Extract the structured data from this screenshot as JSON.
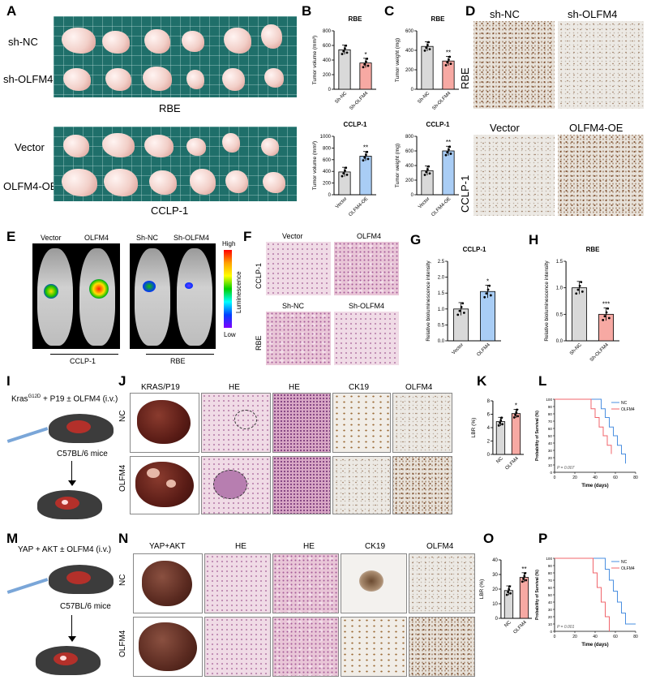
{
  "panels": {
    "A": "A",
    "B": "B",
    "C": "C",
    "D": "D",
    "E": "E",
    "F": "F",
    "G": "G",
    "H": "H",
    "I": "I",
    "J": "J",
    "K": "K",
    "L": "L",
    "M": "M",
    "N": "N",
    "O": "O",
    "P": "P"
  },
  "a": {
    "row1": "sh-NC",
    "row2": "sh-OLFM4",
    "cap1": "RBE",
    "row3": "Vector",
    "row4": "OLFM4-OE",
    "cap2": "CCLP-1"
  },
  "b": {
    "top": {
      "title": "RBE",
      "ylabel": "Tumor volume (mm³)",
      "ticks": [
        "0",
        "200",
        "400",
        "600",
        "800"
      ],
      "cats": [
        "Sh-NC",
        "Sh-OLFM4"
      ],
      "sig": "*"
    },
    "bottom": {
      "title": "CCLP-1",
      "ylabel": "Tumor volume (mm³)",
      "ticks": [
        "0",
        "200",
        "400",
        "600",
        "800",
        "1000"
      ],
      "cats": [
        "Vector",
        "OLFM4-OE"
      ],
      "sig": "**"
    }
  },
  "c": {
    "top": {
      "title": "RBE",
      "ylabel": "Tumor weight (mg)",
      "ticks": [
        "0",
        "200",
        "400",
        "600"
      ],
      "cats": [
        "Sh-NC",
        "Sh-OLFM4"
      ],
      "sig": "**"
    },
    "bottom": {
      "title": "CCLP-1",
      "ylabel": "Tumor weight (mg)",
      "ticks": [
        "0",
        "200",
        "400",
        "600",
        "800"
      ],
      "cats": [
        "Vector",
        "OLFM4-OE"
      ],
      "sig": "**"
    }
  },
  "d": {
    "h1": "sh-NC",
    "h2": "sh-OLFM4",
    "side1": "RBE",
    "h3": "Vector",
    "h4": "OLFM4-OE",
    "side2": "CCLP-1"
  },
  "e": {
    "l1": "Vector",
    "l2": "OLFM4",
    "l3": "Sh-NC",
    "l4": "Sh-OLFM4",
    "high": "High",
    "low": "Low",
    "scale": "Luminescence",
    "g1": "CCLP-1",
    "g2": "RBE"
  },
  "f": {
    "h1": "Vector",
    "h2": "OLFM4",
    "side1": "CCLP-1",
    "h3": "Sh-NC",
    "h4": "Sh-OLFM4",
    "side2": "RBE"
  },
  "g": {
    "title": "CCLP-1",
    "ylabel": "Relative bioluminescence intensity",
    "ticks": [
      "0.0",
      "0.5",
      "1.0",
      "1.5",
      "2.0",
      "2.5"
    ],
    "cats": [
      "Vector",
      "OLFM4"
    ],
    "sig": "*"
  },
  "h": {
    "title": "RBE",
    "ylabel": "Relative bioluminescence intensity",
    "ticks": [
      "0.0",
      "0.5",
      "1.0",
      "1.5"
    ],
    "cats": [
      "Sh-NC",
      "Sh-OLFM4"
    ],
    "sig": "***"
  },
  "i": {
    "line1a": "Kras",
    "line1sup": "G12D",
    "line1b": " + P19 ± OLFM4 (i.v.)",
    "strain": "C57BL/6 mice"
  },
  "j": {
    "h1": "KRAS/P19",
    "h2": "HE",
    "h3": "HE",
    "h4": "CK19",
    "h5": "OLFM4",
    "r1": "NC",
    "r2": "OLFM4"
  },
  "k": {
    "ylabel": "LBR (%)",
    "ticks": [
      "0",
      "2",
      "4",
      "6",
      "8"
    ],
    "cats": [
      "NC",
      "OLFM4"
    ],
    "sig": "*"
  },
  "l": {
    "ylabel": "Probability of Survival (%)",
    "xlabel": "Time (days)",
    "yticks": [
      "0",
      "10",
      "20",
      "30",
      "40",
      "50",
      "60",
      "70",
      "80",
      "90",
      "100"
    ],
    "xticks": [
      "0",
      "20",
      "40",
      "60",
      "80"
    ],
    "legend": [
      "NC",
      "OLFM4"
    ],
    "p": "P = 0.007"
  },
  "m": {
    "line1": "YAP + AKT ± OLFM4 (i.v.)",
    "strain": "C57BL/6 mice"
  },
  "n": {
    "h1": "YAP+AKT",
    "h2": "HE",
    "h3": "HE",
    "h4": "CK19",
    "h5": "OLFM4",
    "r1": "NC",
    "r2": "OLFM4"
  },
  "o": {
    "ylabel": "LBR (%)",
    "ticks": [
      "0",
      "10",
      "20",
      "30",
      "40"
    ],
    "cats": [
      "NC",
      "OLFM4"
    ],
    "sig": "**"
  },
  "p": {
    "ylabel": "Probability of Survival (%)",
    "xlabel": "Time (days)",
    "yticks": [
      "0",
      "10",
      "20",
      "30",
      "40",
      "50",
      "60",
      "70",
      "80",
      "90",
      "100"
    ],
    "xticks": [
      "0",
      "20",
      "40",
      "60",
      "80"
    ],
    "legend": [
      "NC",
      "OLFM4"
    ],
    "p": "P = 0.001"
  },
  "colors": {
    "gray_bar": "#d9d9d9",
    "red_bar": "#f7a9a3",
    "blue_bar": "#a9cdf5",
    "nc_line": "#4a8fe0",
    "olfm4_line": "#f0646b"
  },
  "chart_data": [
    {
      "id": "B-top",
      "type": "bar",
      "categories": [
        "Sh-NC",
        "Sh-OLFM4"
      ],
      "values": [
        540,
        360
      ],
      "ylim": [
        0,
        800
      ],
      "title": "RBE",
      "ylabel": "Tumor volume (mm³)"
    },
    {
      "id": "B-bottom",
      "type": "bar",
      "categories": [
        "Vector",
        "OLFM4-OE"
      ],
      "values": [
        390,
        660
      ],
      "ylim": [
        0,
        1000
      ],
      "title": "CCLP-1",
      "ylabel": "Tumor volume (mm³)"
    },
    {
      "id": "C-top",
      "type": "bar",
      "categories": [
        "Sh-NC",
        "Sh-OLFM4"
      ],
      "values": [
        440,
        290
      ],
      "ylim": [
        0,
        600
      ],
      "title": "RBE",
      "ylabel": "Tumor weight (mg)"
    },
    {
      "id": "C-bottom",
      "type": "bar",
      "categories": [
        "Vector",
        "OLFM4-OE"
      ],
      "values": [
        330,
        600
      ],
      "ylim": [
        0,
        800
      ],
      "title": "CCLP-1",
      "ylabel": "Tumor weight (mg)"
    },
    {
      "id": "G",
      "type": "bar",
      "categories": [
        "Vector",
        "OLFM4"
      ],
      "values": [
        1.0,
        1.55
      ],
      "ylim": [
        0,
        2.5
      ],
      "title": "CCLP-1"
    },
    {
      "id": "H",
      "type": "bar",
      "categories": [
        "Sh-NC",
        "Sh-OLFM4"
      ],
      "values": [
        1.0,
        0.5
      ],
      "ylim": [
        0,
        1.5
      ],
      "title": "RBE"
    },
    {
      "id": "K",
      "type": "bar",
      "categories": [
        "NC",
        "OLFM4"
      ],
      "values": [
        4.9,
        6.1
      ],
      "ylim": [
        0,
        8
      ]
    },
    {
      "id": "L",
      "type": "line",
      "series": [
        {
          "name": "NC",
          "x": [
            0,
            42,
            46,
            50,
            54,
            58,
            62,
            66,
            70
          ],
          "y": [
            100,
            100,
            87,
            75,
            62,
            50,
            37,
            25,
            12
          ]
        },
        {
          "name": "OLFM4",
          "x": [
            0,
            32,
            36,
            40,
            44,
            48,
            52,
            56
          ],
          "y": [
            100,
            100,
            87,
            75,
            62,
            50,
            37,
            25
          ]
        }
      ],
      "xlim": [
        0,
        80
      ],
      "ylim": [
        0,
        100
      ]
    },
    {
      "id": "O",
      "type": "bar",
      "categories": [
        "NC",
        "OLFM4"
      ],
      "values": [
        19,
        28
      ],
      "ylim": [
        0,
        40
      ]
    },
    {
      "id": "P",
      "type": "line",
      "series": [
        {
          "name": "NC",
          "x": [
            0,
            46,
            50,
            54,
            58,
            62,
            66,
            70,
            80
          ],
          "y": [
            100,
            100,
            85,
            70,
            55,
            40,
            25,
            10,
            10
          ]
        },
        {
          "name": "OLFM4",
          "x": [
            0,
            34,
            38,
            42,
            46,
            50,
            54
          ],
          "y": [
            100,
            100,
            80,
            60,
            40,
            20,
            0
          ]
        }
      ],
      "xlim": [
        0,
        80
      ],
      "ylim": [
        0,
        100
      ]
    }
  ]
}
